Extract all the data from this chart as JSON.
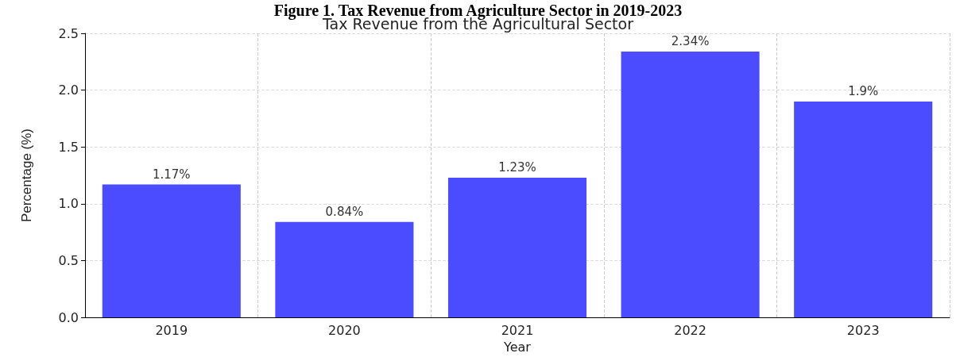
{
  "chart_data": {
    "type": "bar",
    "title": "Tax Revenue from the Agricultural Sector",
    "xlabel": "Year",
    "ylabel": "Percentage (%)",
    "annotations": [
      "Figure 1. Tax Revenue from Agriculture Sector in 2019-2023"
    ],
    "categories": [
      "2019",
      "2020",
      "2021",
      "2022",
      "2023"
    ],
    "values": [
      1.17,
      0.84,
      1.23,
      2.34,
      1.9
    ],
    "value_labels": [
      "1.17%",
      "0.84%",
      "1.23%",
      "2.34%",
      "1.9%"
    ],
    "color": "#4b4bff",
    "ylim": [
      0,
      2.5
    ],
    "yticks": [
      {
        "value": 0,
        "label": "0.0"
      },
      0.5,
      {
        "value": 1,
        "label": "1.0"
      },
      1.5,
      {
        "value": 2,
        "label": "2.0"
      },
      2.5
    ],
    "grid": true
  }
}
